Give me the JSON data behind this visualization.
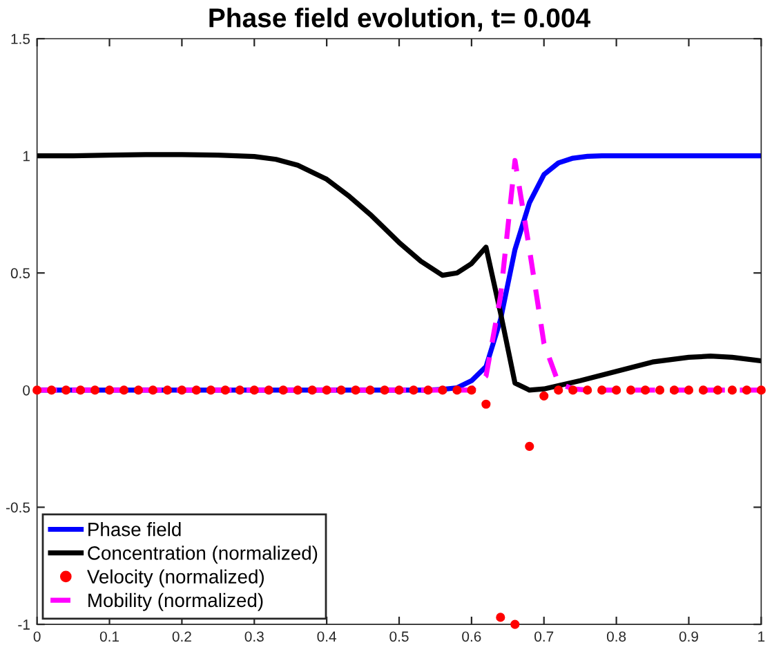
{
  "chart_data": {
    "type": "line",
    "title": "Phase field evolution, t= 0.004",
    "xlim": [
      0,
      1
    ],
    "ylim": [
      -1,
      1.5
    ],
    "xticks": [
      0,
      0.1,
      0.2,
      0.3,
      0.4,
      0.5,
      0.6,
      0.7,
      0.8,
      0.9,
      1
    ],
    "yticks": [
      -1,
      -0.5,
      0,
      0.5,
      1,
      1.5
    ],
    "grid": false,
    "legend": "bottom left",
    "series": [
      {
        "name": "Phase field",
        "color": "#0000ff",
        "line_style": "solid",
        "marker": "none",
        "x": [
          0,
          0.02,
          0.04,
          0.06,
          0.08,
          0.1,
          0.12,
          0.14,
          0.16,
          0.18,
          0.2,
          0.22,
          0.24,
          0.26,
          0.28,
          0.3,
          0.32,
          0.34,
          0.36,
          0.38,
          0.4,
          0.42,
          0.44,
          0.46,
          0.48,
          0.5,
          0.52,
          0.54,
          0.56,
          0.58,
          0.6,
          0.62,
          0.64,
          0.66,
          0.68,
          0.7,
          0.72,
          0.74,
          0.76,
          0.78,
          0.8,
          0.82,
          0.84,
          0.86,
          0.88,
          0.9,
          0.92,
          0.94,
          0.96,
          0.98,
          1
        ],
        "values": [
          0,
          0,
          0,
          0,
          0,
          0,
          0,
          0,
          0,
          0,
          0,
          0,
          0,
          0,
          0,
          0,
          0,
          0,
          0,
          0,
          0,
          0,
          0,
          0,
          0,
          0,
          0,
          0,
          0.003,
          0.01,
          0.04,
          0.1,
          0.3,
          0.6,
          0.8,
          0.92,
          0.97,
          0.99,
          0.998,
          1,
          1,
          1,
          1,
          1,
          1,
          1,
          1,
          1,
          1,
          1,
          1
        ]
      },
      {
        "name": "Concentration (normalized)",
        "color": "#000000",
        "line_style": "solid",
        "marker": "none",
        "x": [
          0,
          0.05,
          0.1,
          0.15,
          0.2,
          0.25,
          0.3,
          0.33,
          0.36,
          0.4,
          0.43,
          0.46,
          0.5,
          0.53,
          0.56,
          0.58,
          0.6,
          0.62,
          0.64,
          0.66,
          0.68,
          0.7,
          0.75,
          0.8,
          0.85,
          0.9,
          0.93,
          0.96,
          1
        ],
        "values": [
          1,
          1,
          1.003,
          1.005,
          1.005,
          1.003,
          0.997,
          0.985,
          0.96,
          0.9,
          0.83,
          0.75,
          0.63,
          0.55,
          0.49,
          0.5,
          0.54,
          0.61,
          0.33,
          0.03,
          0,
          0.005,
          0.04,
          0.08,
          0.12,
          0.14,
          0.145,
          0.14,
          0.125
        ]
      },
      {
        "name": "Velocity (normalized)",
        "type": "scatter",
        "color": "#ff0000",
        "marker": "circle",
        "x": [
          0,
          0.02,
          0.04,
          0.06,
          0.08,
          0.1,
          0.12,
          0.14,
          0.16,
          0.18,
          0.2,
          0.22,
          0.24,
          0.26,
          0.28,
          0.3,
          0.32,
          0.34,
          0.36,
          0.38,
          0.4,
          0.42,
          0.44,
          0.46,
          0.48,
          0.5,
          0.52,
          0.54,
          0.56,
          0.58,
          0.6,
          0.62,
          0.64,
          0.66,
          0.68,
          0.7,
          0.72,
          0.74,
          0.76,
          0.78,
          0.8,
          0.82,
          0.84,
          0.86,
          0.88,
          0.9,
          0.92,
          0.94,
          0.96,
          0.98,
          1
        ],
        "values": [
          0,
          0,
          0,
          0,
          0,
          0,
          0,
          0,
          0,
          0,
          0,
          0,
          0,
          0,
          0,
          0,
          0,
          0,
          0,
          0,
          0,
          0,
          0,
          0,
          0,
          0,
          0,
          0,
          0,
          0,
          0,
          -0.06,
          -0.97,
          -1,
          -0.24,
          -0.025,
          0,
          0,
          0,
          0,
          0,
          0,
          0,
          0,
          0,
          0,
          0,
          0,
          0,
          0,
          0
        ]
      },
      {
        "name": "Mobility (normalized)",
        "color": "#ff00ff",
        "line_style": "dashed",
        "marker": "none",
        "x": [
          0,
          0.02,
          0.04,
          0.06,
          0.08,
          0.1,
          0.12,
          0.14,
          0.16,
          0.18,
          0.2,
          0.22,
          0.24,
          0.26,
          0.28,
          0.3,
          0.32,
          0.34,
          0.36,
          0.38,
          0.4,
          0.42,
          0.44,
          0.46,
          0.48,
          0.5,
          0.52,
          0.54,
          0.56,
          0.58,
          0.6,
          0.62,
          0.64,
          0.66,
          0.68,
          0.7,
          0.72,
          0.74,
          0.76,
          0.78,
          0.8,
          0.82,
          0.84,
          0.86,
          0.88,
          0.9,
          0.92,
          0.94,
          0.96,
          0.98,
          1
        ],
        "values": [
          0,
          0,
          0,
          0,
          0,
          0,
          0,
          0,
          0,
          0,
          0,
          0,
          0,
          0,
          0,
          0,
          0,
          0,
          0,
          0,
          0,
          0,
          0,
          0,
          0,
          0,
          0,
          0,
          0,
          0,
          0,
          0.06,
          0.4,
          0.98,
          0.6,
          0.2,
          0.03,
          0.005,
          0,
          0,
          0,
          0,
          0,
          0,
          0,
          0,
          0,
          0,
          0,
          0,
          0
        ]
      }
    ]
  }
}
